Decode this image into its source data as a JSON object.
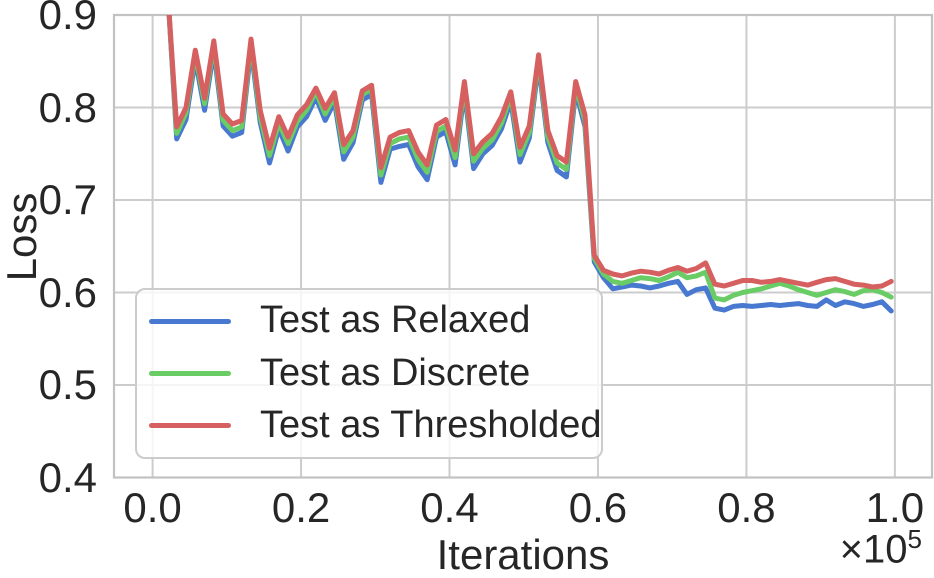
{
  "figure": {
    "background": "#ffffff",
    "text_color": "#262626",
    "grid_color": "#cccccc",
    "spine_color": "#c2c2c2"
  },
  "chart_data": {
    "type": "line",
    "title": "",
    "xlabel": "Iterations",
    "ylabel": "Loss",
    "offset": {
      "base": "×10",
      "exp": "5"
    },
    "grid": true,
    "legend_position": "lower left",
    "xlim": [
      -0.052,
      1.05
    ],
    "ylim": [
      0.4,
      0.9
    ],
    "xticks": {
      "values": [
        0.0,
        0.2,
        0.4,
        0.6,
        0.8,
        1.0
      ],
      "labels": [
        "0.0",
        "0.2",
        "0.4",
        "0.6",
        "0.8",
        "1.0"
      ]
    },
    "yticks": {
      "values": [
        0.4,
        0.5,
        0.6,
        0.7,
        0.8,
        0.9
      ],
      "labels": [
        "0.4",
        "0.5",
        "0.6",
        "0.7",
        "0.8",
        "0.9"
      ]
    },
    "line_width": 5,
    "x": [
      0.02,
      0.0325,
      0.045,
      0.0575,
      0.07,
      0.0825,
      0.095,
      0.1075,
      0.12,
      0.1325,
      0.145,
      0.1575,
      0.17,
      0.1825,
      0.195,
      0.2075,
      0.22,
      0.2325,
      0.245,
      0.2575,
      0.27,
      0.2825,
      0.295,
      0.3075,
      0.32,
      0.3325,
      0.345,
      0.3575,
      0.37,
      0.3825,
      0.395,
      0.4075,
      0.42,
      0.4325,
      0.445,
      0.4575,
      0.47,
      0.4825,
      0.495,
      0.5075,
      0.52,
      0.5325,
      0.545,
      0.5575,
      0.57,
      0.5825,
      0.595,
      0.6075,
      0.62,
      0.6325,
      0.645,
      0.6575,
      0.67,
      0.6825,
      0.695,
      0.7075,
      0.72,
      0.7325,
      0.745,
      0.7575,
      0.77,
      0.7825,
      0.795,
      0.8075,
      0.82,
      0.8325,
      0.845,
      0.8575,
      0.87,
      0.8825,
      0.895,
      0.9075,
      0.92,
      0.9325,
      0.945,
      0.9575,
      0.97,
      0.9825,
      0.995
    ],
    "series": [
      {
        "name": "Test as Relaxed",
        "color": "#4878cf",
        "values": [
          0.93,
          0.766,
          0.787,
          0.852,
          0.797,
          0.862,
          0.78,
          0.769,
          0.773,
          0.864,
          0.784,
          0.74,
          0.777,
          0.753,
          0.779,
          0.79,
          0.811,
          0.786,
          0.806,
          0.744,
          0.762,
          0.808,
          0.814,
          0.719,
          0.755,
          0.758,
          0.76,
          0.736,
          0.722,
          0.768,
          0.774,
          0.738,
          0.818,
          0.734,
          0.75,
          0.759,
          0.777,
          0.807,
          0.741,
          0.767,
          0.847,
          0.762,
          0.732,
          0.725,
          0.818,
          0.779,
          0.633,
          0.616,
          0.604,
          0.606,
          0.608,
          0.607,
          0.605,
          0.607,
          0.61,
          0.612,
          0.598,
          0.603,
          0.605,
          0.583,
          0.581,
          0.585,
          0.586,
          0.585,
          0.586,
          0.587,
          0.586,
          0.587,
          0.588,
          0.586,
          0.585,
          0.592,
          0.586,
          0.59,
          0.588,
          0.585,
          0.587,
          0.59,
          0.58
        ]
      },
      {
        "name": "Test as Discrete",
        "color": "#6acc64",
        "values": [
          0.93,
          0.772,
          0.794,
          0.858,
          0.804,
          0.868,
          0.786,
          0.775,
          0.779,
          0.87,
          0.79,
          0.748,
          0.783,
          0.761,
          0.785,
          0.797,
          0.817,
          0.793,
          0.812,
          0.752,
          0.768,
          0.814,
          0.82,
          0.727,
          0.761,
          0.766,
          0.768,
          0.744,
          0.73,
          0.774,
          0.78,
          0.746,
          0.824,
          0.742,
          0.756,
          0.765,
          0.783,
          0.813,
          0.749,
          0.773,
          0.853,
          0.768,
          0.74,
          0.733,
          0.824,
          0.785,
          0.637,
          0.62,
          0.612,
          0.61,
          0.613,
          0.616,
          0.615,
          0.613,
          0.617,
          0.622,
          0.616,
          0.618,
          0.622,
          0.594,
          0.592,
          0.597,
          0.6,
          0.602,
          0.604,
          0.607,
          0.61,
          0.607,
          0.603,
          0.6,
          0.597,
          0.6,
          0.603,
          0.601,
          0.598,
          0.602,
          0.603,
          0.6,
          0.595
        ]
      },
      {
        "name": "Test as Thresholded",
        "color": "#d65f5f",
        "values": [
          0.93,
          0.779,
          0.8,
          0.862,
          0.81,
          0.872,
          0.793,
          0.782,
          0.786,
          0.874,
          0.797,
          0.756,
          0.79,
          0.768,
          0.792,
          0.803,
          0.821,
          0.799,
          0.816,
          0.76,
          0.775,
          0.818,
          0.824,
          0.735,
          0.768,
          0.773,
          0.775,
          0.752,
          0.738,
          0.781,
          0.787,
          0.754,
          0.828,
          0.75,
          0.763,
          0.772,
          0.79,
          0.817,
          0.757,
          0.78,
          0.857,
          0.775,
          0.748,
          0.741,
          0.828,
          0.792,
          0.64,
          0.624,
          0.62,
          0.618,
          0.621,
          0.623,
          0.622,
          0.62,
          0.624,
          0.627,
          0.623,
          0.626,
          0.632,
          0.609,
          0.607,
          0.61,
          0.613,
          0.613,
          0.611,
          0.612,
          0.614,
          0.612,
          0.61,
          0.608,
          0.611,
          0.614,
          0.615,
          0.612,
          0.609,
          0.608,
          0.606,
          0.607,
          0.612
        ]
      }
    ]
  }
}
